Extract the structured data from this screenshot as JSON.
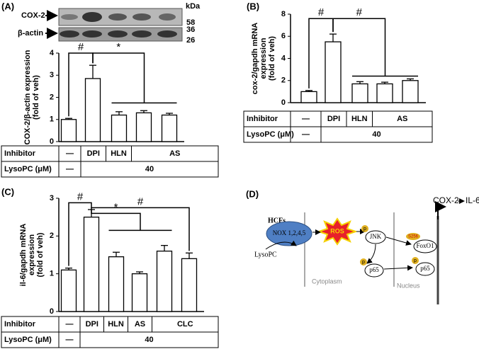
{
  "panels": [
    "(A)",
    "(B)",
    "(C)",
    "(D)"
  ],
  "blot": {
    "bands": [
      "COX-2",
      "β-actin"
    ],
    "markers": [
      "kDa",
      "58",
      "36",
      "26"
    ]
  },
  "chart_data": [
    {
      "type": "bar",
      "ylabel": [
        "COX-2/β-actin expression",
        "(fold of veh)"
      ],
      "values": [
        1.0,
        2.85,
        1.2,
        1.3,
        1.2
      ],
      "errors": [
        0.05,
        0.6,
        0.15,
        0.1,
        0.08
      ],
      "color": "#ffffff",
      "ylim": [
        0,
        4
      ],
      "yticks": [
        0,
        1,
        2,
        3,
        4
      ],
      "annotations": [
        "#",
        "*"
      ],
      "table": {
        "rows": [
          {
            "label": "Inhibitor",
            "cells": [
              "—",
              "DPI",
              "HLN",
              "AS"
            ]
          },
          {
            "label": "LysoPC (μM)",
            "cells": [
              "—",
              "40"
            ]
          }
        ]
      }
    },
    {
      "type": "bar",
      "ylabel": [
        "cox-2/gapdh mRNA",
        "expression",
        "(fold of veh)"
      ],
      "values": [
        1.0,
        5.5,
        1.7,
        1.7,
        2.0
      ],
      "errors": [
        0.1,
        0.7,
        0.2,
        0.15,
        0.15
      ],
      "color": "#ffffff",
      "ylim": [
        0,
        8
      ],
      "yticks": [
        0,
        2,
        4,
        6,
        8
      ],
      "annotations": [
        "#",
        "#"
      ],
      "table": {
        "rows": [
          {
            "label": "Inhibitor",
            "cells": [
              "—",
              "DPI",
              "HLN",
              "AS"
            ]
          },
          {
            "label": "LysoPC (μM)",
            "cells": [
              "—",
              "40"
            ]
          }
        ]
      }
    },
    {
      "type": "bar",
      "ylabel": [
        "il-6/gapdh mRNA",
        "expression",
        "(fold of veh)"
      ],
      "values": [
        1.1,
        2.5,
        1.45,
        1.0,
        1.6,
        1.4
      ],
      "errors": [
        0.05,
        0.2,
        0.12,
        0.05,
        0.15,
        0.15
      ],
      "color": "#ffffff",
      "ylim": [
        0,
        3
      ],
      "yticks": [
        0,
        1,
        2,
        3
      ],
      "annotations": [
        "#",
        "*",
        "#"
      ],
      "table": {
        "rows": [
          {
            "label": "Inhibitor",
            "cells": [
              "—",
              "DPI",
              "HLN",
              "AS",
              "CLC"
            ]
          },
          {
            "label": "LysoPC (μM)",
            "cells": [
              "—",
              "40"
            ]
          }
        ]
      }
    }
  ],
  "diagram": {
    "hcfs": "HCFs",
    "nox": "NOX 1,2,4,5",
    "ros": "ROS",
    "lysopc": "LysoPC",
    "cytoplasm": "Cytoplasm",
    "nucleus": "Nucleus",
    "jnk": "JNK",
    "p": "p",
    "p65": "p65",
    "s256": "S256",
    "foxo1": "FoxO1",
    "cox2": "COX-2",
    "il6": "IL-6"
  }
}
